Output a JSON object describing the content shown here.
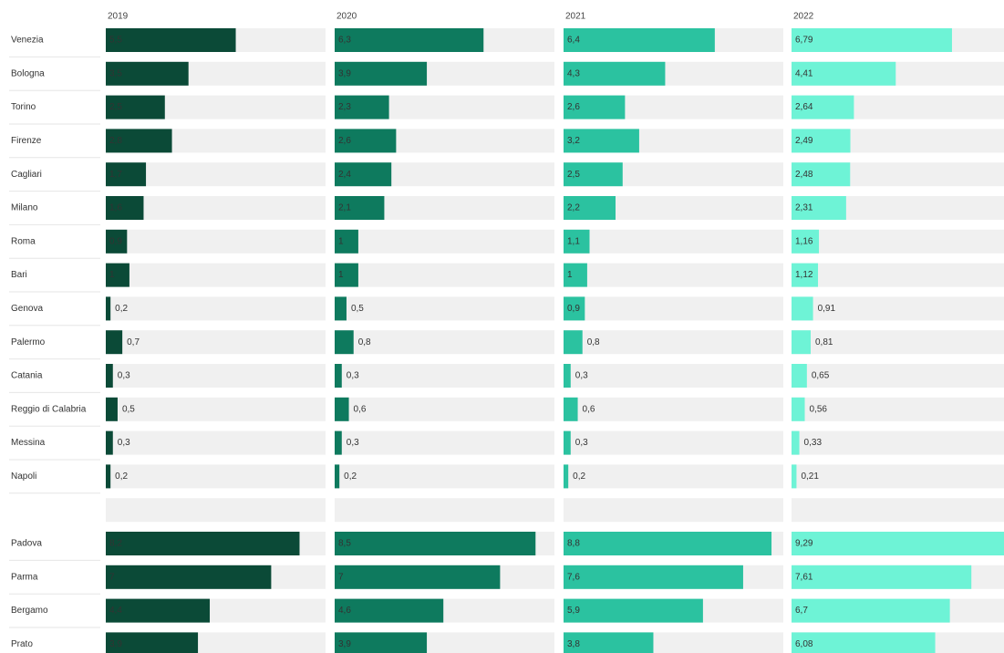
{
  "chart_data": {
    "type": "bar",
    "categories": [
      "Venezia",
      "Bologna",
      "Torino",
      "Firenze",
      "Cagliari",
      "Milano",
      "Roma",
      "Bari",
      "Genova",
      "Palermo",
      "Catania",
      "Reggio di Calabria",
      "Messina",
      "Napoli",
      null,
      "Padova",
      "Parma",
      "Bergamo",
      "Prato"
    ],
    "xlim": [
      0,
      9.3
    ],
    "series": [
      {
        "name": "2019",
        "color": "#0b4a37",
        "values": [
          5.5,
          3.5,
          2.5,
          2.8,
          1.7,
          1.6,
          0.9,
          1,
          0.2,
          0.7,
          0.3,
          0.5,
          0.3,
          0.2,
          null,
          8.2,
          7,
          4.4,
          3.9
        ],
        "value_labels": [
          "5,5",
          "3,5",
          "2,5",
          "2,8",
          "1,7",
          "1,6",
          "0,9",
          "1",
          "0,2",
          "0,7",
          "0,3",
          "0,5",
          "0,3",
          "0,2",
          null,
          "8,2",
          "7",
          "4,4",
          "3,9"
        ]
      },
      {
        "name": "2020",
        "color": "#0e7a5e",
        "values": [
          6.3,
          3.9,
          2.3,
          2.6,
          2.4,
          2.1,
          1,
          1,
          0.5,
          0.8,
          0.3,
          0.6,
          0.3,
          0.2,
          null,
          8.5,
          7,
          4.6,
          3.9
        ],
        "value_labels": [
          "6,3",
          "3,9",
          "2,3",
          "2,6",
          "2,4",
          "2,1",
          "1",
          "1",
          "0,5",
          "0,8",
          "0,3",
          "0,6",
          "0,3",
          "0,2",
          null,
          "8,5",
          "7",
          "4,6",
          "3,9"
        ]
      },
      {
        "name": "2021",
        "color": "#2bc2a0",
        "values": [
          6.4,
          4.3,
          2.6,
          3.2,
          2.5,
          2.2,
          1.1,
          1,
          0.9,
          0.8,
          0.3,
          0.6,
          0.3,
          0.2,
          null,
          8.8,
          7.6,
          5.9,
          3.8
        ],
        "value_labels": [
          "6,4",
          "4,3",
          "2,6",
          "3,2",
          "2,5",
          "2,2",
          "1,1",
          "1",
          "0,9",
          "0,8",
          "0,3",
          "0,6",
          "0,3",
          "0,2",
          null,
          "8,8",
          "7,6",
          "5,9",
          "3,8"
        ]
      },
      {
        "name": "2022",
        "color": "#6ef3d6",
        "values": [
          6.79,
          4.41,
          2.64,
          2.49,
          2.48,
          2.31,
          1.16,
          1.12,
          0.91,
          0.81,
          0.65,
          0.56,
          0.33,
          0.21,
          null,
          9.29,
          7.61,
          6.7,
          6.08
        ],
        "value_labels": [
          "6,79",
          "4,41",
          "2,64",
          "2,49",
          "2,48",
          "2,31",
          "1,16",
          "1,12",
          "0,91",
          "0,81",
          "0,65",
          "0,56",
          "0,33",
          "0,21",
          null,
          "9,29",
          "7,61",
          "6,7",
          "6,08"
        ]
      }
    ]
  }
}
